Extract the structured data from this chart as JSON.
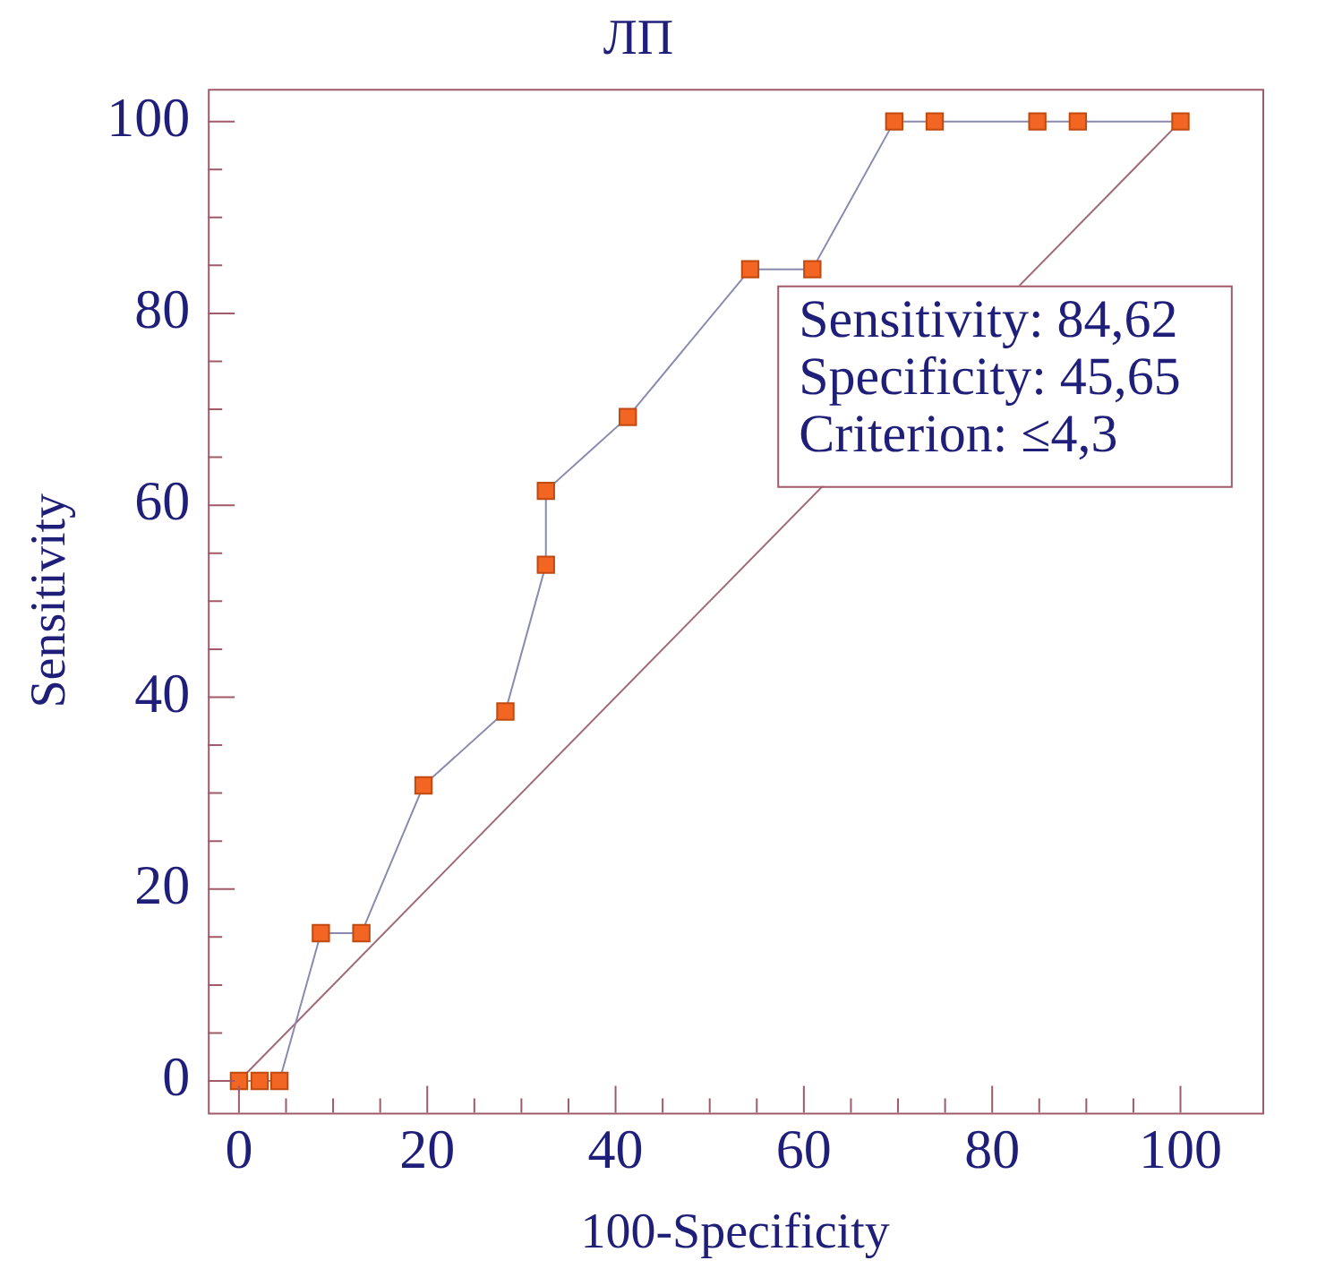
{
  "chart_data": {
    "type": "line",
    "title": "ЛП",
    "xlabel": "100-Specificity",
    "ylabel": "Sensitivity",
    "series": [
      {
        "type": "line",
        "color": "#f26522",
        "marker": "square",
        "x": [
          0,
          2.2,
          4.3,
          8.7,
          13.0,
          19.6,
          28.3,
          32.6,
          32.6,
          41.3,
          54.3,
          60.9,
          69.6,
          73.9,
          84.8,
          89.1,
          100
        ],
        "values": [
          0,
          0,
          0,
          15.4,
          15.4,
          30.8,
          38.5,
          53.8,
          61.5,
          69.2,
          84.6,
          84.6,
          100,
          100,
          100,
          100,
          100
        ]
      },
      {
        "type": "line",
        "color": "#a06a78",
        "marker": "none",
        "x": [
          0,
          100
        ],
        "values": [
          0,
          100
        ]
      }
    ],
    "xlim": [
      -3.3,
      108.7
    ],
    "ylim": [
      -3.3,
      103.4
    ],
    "xticks": [
      0,
      {
        "value": 5,
        "label": null
      },
      {
        "value": 10,
        "label": null
      },
      {
        "value": 15,
        "label": null
      },
      20,
      {
        "value": 25,
        "label": null
      },
      {
        "value": 30,
        "label": null
      },
      {
        "value": 35,
        "label": null
      },
      40,
      {
        "value": 45,
        "label": null
      },
      {
        "value": 50,
        "label": null
      },
      {
        "value": 55,
        "label": null
      },
      60,
      {
        "value": 65,
        "label": null
      },
      {
        "value": 70,
        "label": null
      },
      {
        "value": 75,
        "label": null
      },
      80,
      {
        "value": 85,
        "label": null
      },
      {
        "value": 90,
        "label": null
      },
      {
        "value": 95,
        "label": null
      },
      100
    ],
    "yticks": [
      0,
      {
        "value": 5,
        "label": null
      },
      {
        "value": 10,
        "label": null
      },
      {
        "value": 15,
        "label": null
      },
      20,
      {
        "value": 25,
        "label": null
      },
      {
        "value": 30,
        "label": null
      },
      {
        "value": 35,
        "label": null
      },
      40,
      {
        "value": 45,
        "label": null
      },
      {
        "value": 50,
        "label": null
      },
      {
        "value": 55,
        "label": null
      },
      60,
      {
        "value": 65,
        "label": null
      },
      {
        "value": 70,
        "label": null
      },
      {
        "value": 75,
        "label": null
      },
      80,
      {
        "value": 85,
        "label": null
      },
      {
        "value": 90,
        "label": null
      },
      {
        "value": 95,
        "label": null
      },
      100
    ],
    "annotations": [
      "Sensitivity: 84,62",
      "Specificity: 45,65",
      "Criterion: ≤4,3"
    ]
  }
}
